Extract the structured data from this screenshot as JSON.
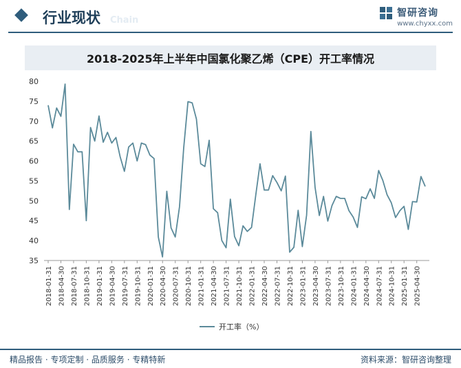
{
  "header": {
    "section_title": "行业现状",
    "section_sub": "Chain",
    "brand_name": "智研咨询",
    "brand_url": "www.chyxx.com"
  },
  "chart_title": "2018-2025年上半年中国氯化聚乙烯（CPE）开工率情况",
  "footer": {
    "left": "精品报告 · 专项定制 · 品质服务 · 专精特新",
    "right": "资料来源：智研咨询整理"
  },
  "colors": {
    "line": "#5b8a9a",
    "brand": "#2f5d7c"
  },
  "chart_data": {
    "type": "line",
    "title": "2018-2025年上半年中国氯化聚乙烯（CPE）开工率情况",
    "xlabel": "",
    "ylabel": "",
    "ylim": [
      35,
      80
    ],
    "y_ticks": [
      35,
      40,
      45,
      50,
      55,
      60,
      65,
      70,
      75,
      80
    ],
    "x_tick_labels": [
      "2018-01-31",
      "2018-04-30",
      "2018-07-31",
      "2018-10-31",
      "2019-01-31",
      "2019-04-30",
      "2019-07-31",
      "2019-10-31",
      "2020-01-31",
      "2020-04-30",
      "2020-07-31",
      "2020-10-31",
      "2021-01-31",
      "2021-04-30",
      "2021-07-31",
      "2021-10-31",
      "2022-01-31",
      "2022-04-30",
      "2022-07-31",
      "2022-10-31",
      "2023-01-31",
      "2023-04-30",
      "2023-07-31",
      "2023-10-31",
      "2024-01-31",
      "2024-04-30",
      "2024-07-31",
      "2024-10-31",
      "2025-01-31",
      "2025-04-30"
    ],
    "legend": "开工率（%）",
    "series": [
      {
        "name": "开工率（%）",
        "values": [
          74.0,
          68.3,
          73.3,
          71.2,
          79.3,
          47.8,
          64.2,
          62.3,
          62.3,
          45.0,
          68.4,
          65.0,
          71.3,
          64.7,
          67.2,
          64.5,
          65.9,
          61.0,
          57.4,
          63.5,
          64.5,
          60.0,
          64.5,
          64.1,
          61.5,
          60.6,
          40.9,
          35.9,
          52.4,
          43.2,
          40.9,
          48.5,
          63.3,
          74.9,
          74.6,
          70.5,
          59.3,
          58.6,
          65.2,
          48.0,
          47.0,
          40.0,
          38.2,
          50.4,
          41.0,
          38.7,
          43.7,
          42.3,
          43.3,
          51.4,
          59.3,
          52.7,
          52.7,
          56.3,
          54.6,
          52.5,
          56.2,
          37.1,
          38.3,
          47.6,
          38.5,
          46.4,
          67.4,
          53.4,
          46.3,
          51.1,
          44.9,
          48.8,
          51.1,
          50.6,
          50.6,
          47.5,
          45.9,
          43.3,
          51.0,
          50.5,
          53.0,
          50.6,
          57.6,
          55.1,
          51.5,
          49.5,
          45.8,
          47.5,
          48.6,
          42.8,
          49.8,
          49.7,
          56.1,
          53.6
        ]
      }
    ]
  }
}
